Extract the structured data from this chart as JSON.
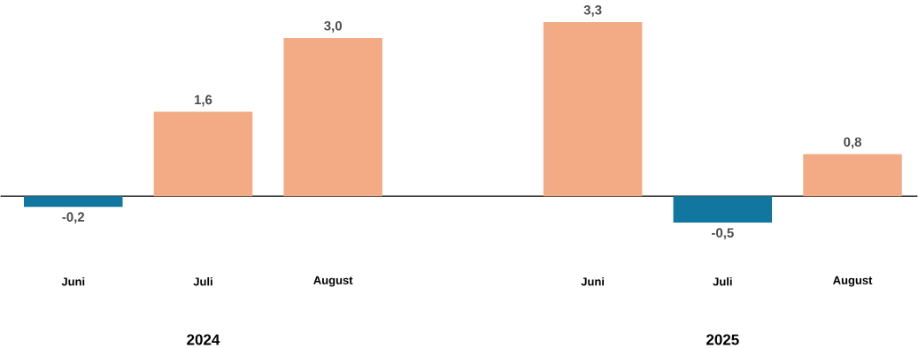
{
  "chart_data": {
    "type": "bar",
    "categories": [
      "Juni",
      "Juli",
      "August",
      null,
      "Juni",
      "Juli",
      "August"
    ],
    "values": [
      -0.2,
      1.6,
      3.0,
      null,
      3.3,
      -0.5,
      0.8
    ],
    "value_labels": [
      "-0,2",
      "1,6",
      "3,0",
      null,
      "3,3",
      "-0,5",
      "0,8"
    ],
    "colors": [
      "#1277a0",
      "#f2ab85",
      "#f2ab85",
      "#f2ab85",
      "#f2ab85",
      "#1277a0",
      "#f2ab85"
    ],
    "annotations": [
      "2024",
      "2025"
    ]
  }
}
